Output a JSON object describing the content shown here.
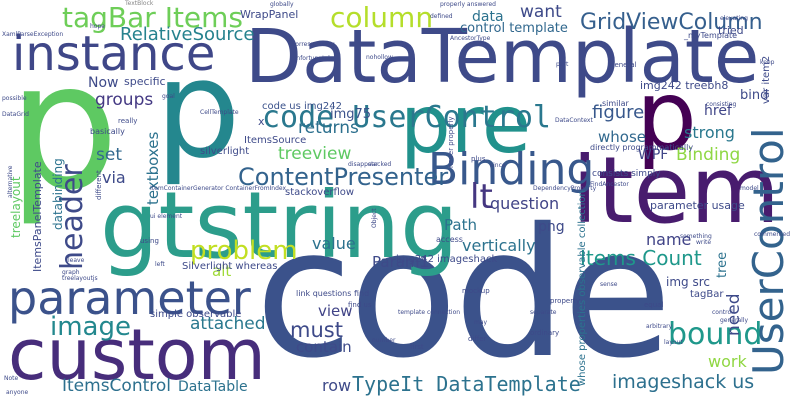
{
  "words": {
    "code": "code",
    "gtstring": "gtstring",
    "DataTemplate": "DataTemplate",
    "p1": "p",
    "p2": "p",
    "p3": "p",
    "item": "item",
    "pre": "pre",
    "custom": "custom",
    "parameter": "parameter",
    "instance": "instance",
    "Binding": "Binding",
    "UserControl": "UserControl",
    "code_UserControl": "code UserControl",
    "tagBar_Items": "tagBar Items",
    "column": "column",
    "GridViewColumn": "GridViewColumn",
    "RelativeSource": "RelativeSource",
    "header": "header",
    "problem": "problem",
    "image": "image",
    "bound": "bound",
    "ContentPresenter": "ContentPresenter",
    "lt": "lt",
    "question": "question",
    "treeview": "treeview",
    "returns": "returns",
    "ItemsControl": "ItemsControl",
    "DataTable": "DataTable",
    "row": "row",
    "TypeIt_DataTemplate": "TypeIt DataTemplate",
    "imageshack_us": "imageshack us",
    "Items_Count": "Items Count",
    "attached": "attached",
    "must": "must",
    "figure": "figure",
    "strong": "strong",
    "WPF": "WPF",
    "set": "set",
    "via": "via",
    "textboxes": "textboxes",
    "Now": "Now",
    "groups": "groups",
    "value": "value",
    "name": "name",
    "Path": "Path",
    "png": "png",
    "vertically": "vertically",
    "alt": "alt",
    "Param1": "Param1",
    "view": "view",
    "contain": "contain",
    "need": "need",
    "work": "work",
    "data": "data",
    "want": "want",
    "control_template": "control template",
    "href": "href",
    "whose": "whose",
    "bind": "bind",
    "img75": "img75",
    "img242_treebh8": "img242 treebh8",
    "code_us_img242": "code us img242",
    "ItemsSource": "ItemsSource",
    "silverlight": "silverlight",
    "x": "x",
    "treelayout": "treelayout",
    "ItemsPanelTemplate": "ItemsPanelTemplate",
    "databinding": "databinding",
    "img242_imageshack": "img242 imageshack",
    "stackoverflow": "stackoverflow",
    "parameter_usage": "parameter usage",
    "img_src": "img src",
    "tree": "tree",
    "specific": "specific",
    "var_item2": "var item2",
    "WrapPanel": "WrapPanel",
    "tried": "tried",
    "tagBar": "tagBar",
    "whose_properties": "whose properties observable collection",
    "Silverlight_whereas": "Silverlight whereas",
    "simple_observable": "simple observable",
    "TextBlock": "TextBlock",
    "basically": "basically",
    "really": "really",
    "access": "access",
    "DependencyProperty": "DependencyProperty",
    "directly_programmatically": "directly programmatically",
    "consists_simply": "consists simply",
    "similar": "similar",
    "plus": "plus",
    "link_questions_find": "link questions find",
    "find_us": "find us",
    "mockup": "mockup",
    "first": "first",
    "differ": "differ",
    "ordinary": "ordinary",
    "equal": "equal",
    "template_connection": "template connection",
    "property": "property",
    "separate": "separate",
    "myTemplate": "_myTemplate",
    "elevating": "elevating",
    "different": "different",
    "alternative": "alternative",
    "anyone": "anyone",
    "Note": "Note",
    "using": "using",
    "leave": "leave",
    "graph": "graph",
    "treelayoutjs": "treelayoutjs",
    "ui_element": "ui element",
    "ContainerGenerator": "ItemContainerGenerator ContainerFromIndex",
    "FindAncestor": "FindAncestor",
    "DataContext": "DataContext",
    "something": "something",
    "write": "write",
    "sense": "sense",
    "model": "model",
    "general": "general",
    "keep": "keep",
    "global": "globally",
    "hope": "hope",
    "unfortunately": "Unfortunately",
    "nohollow": "nohollow",
    "properly_answered": "properly answered",
    "defined": "defined",
    "part": "part",
    "since": "since",
    "Object": "Object",
    "never_properly": "never properly",
    "disappear": "disappear",
    "stacked": "stacked",
    "Level": "Level",
    "fold": "fold",
    "CellTemplate": "CellTemplate",
    "goal": "goal",
    "AncestorType": "AncestorType",
    "consisting": "consisting",
    "Path2": "Path",
    "ActualWidth": "ActualWidth",
    "made": "made",
    "XamlParseException": "XamlParseException",
    "possible": "possible",
    "DataGrid": "DataGrid",
    "Wpf": "wpf",
    "correspending": "corresponding",
    "context": "context",
    "arbitrary": "arbitrary",
    "layout": "layout",
    "generally": "generally",
    "control": "control",
    "may": "may",
    "number": "number",
    "wire": "wire",
    "left": "left",
    "commend": "commented"
  }
}
